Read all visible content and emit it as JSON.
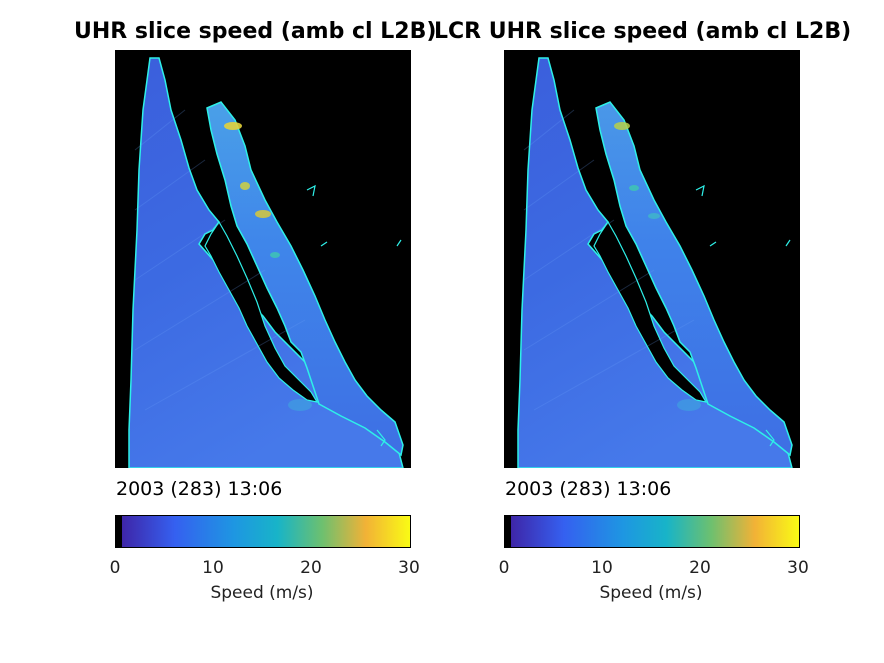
{
  "chart_data": [
    {
      "type": "heatmap",
      "title": "UHR slice speed (amb cl L2B)",
      "timestamp": "2003 (283) 13:06",
      "colorbar": {
        "label": "Speed (m/s)",
        "range": [
          0,
          30
        ],
        "ticks": [
          "0",
          "10",
          "20",
          "30"
        ],
        "colormap": [
          "#000000",
          "#3e26a8",
          "#2f72f0",
          "#1aa9d8",
          "#35c6a0",
          "#a5be3a",
          "#fcb73c",
          "#f9fb15"
        ]
      },
      "typical_speed": 7,
      "max_speed": 30
    },
    {
      "type": "heatmap",
      "title": "LCR UHR slice speed (amb cl L2B)",
      "timestamp": "2003 (283) 13:06",
      "colorbar": {
        "label": "Speed (m/s)",
        "range": [
          0,
          30
        ],
        "ticks": [
          "0",
          "10",
          "20",
          "30"
        ],
        "colormap": [
          "#000000",
          "#3e26a8",
          "#2f72f0",
          "#1aa9d8",
          "#35c6a0",
          "#a5be3a",
          "#fcb73c",
          "#f9fb15"
        ]
      },
      "typical_speed": 7,
      "max_speed": 25
    }
  ],
  "colors": {
    "land": "#000000",
    "coastline": "#2ef0e8",
    "ocean": "#3a66e0",
    "ocean_light": "#4a86ee",
    "hotspot": "#e2d23a"
  }
}
